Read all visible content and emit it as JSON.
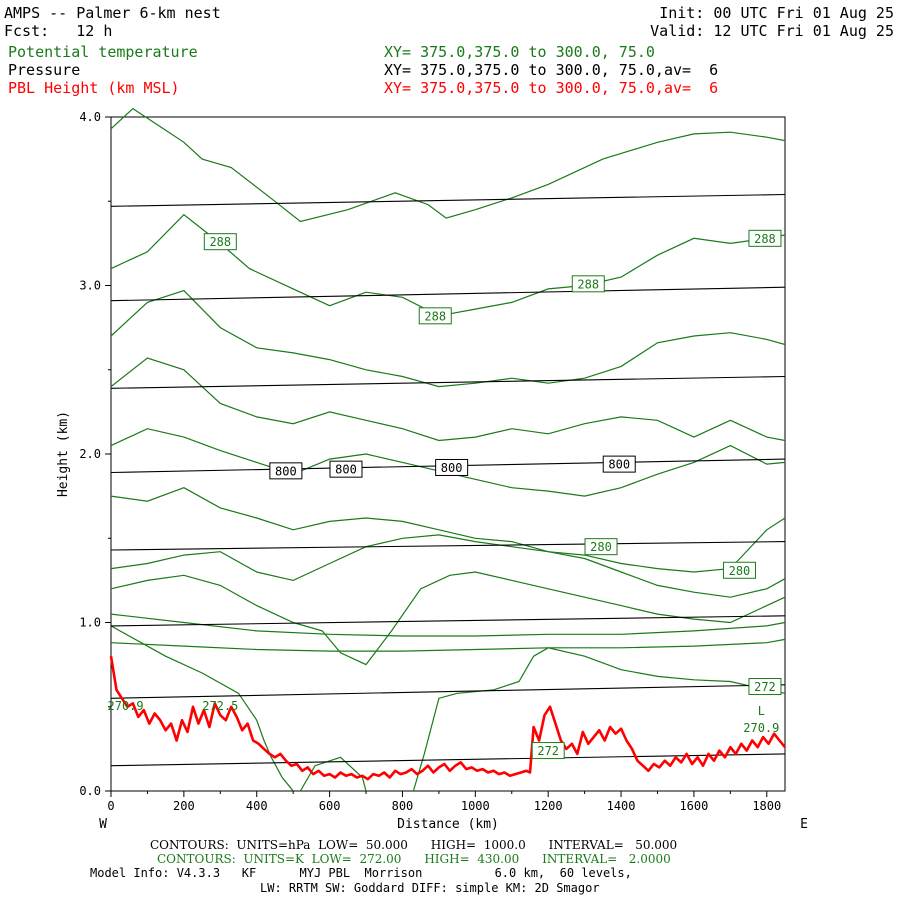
{
  "header": {
    "title": "AMPS -- Palmer 6-km nest",
    "init": "Init: 00 UTC Fri 01 Aug 25",
    "fcst": "Fcst:   12 h",
    "valid": "Valid: 12 UTC Fri 01 Aug 25",
    "field1": "Potential temperature",
    "field1_xy": "XY= 375.0,375.0 to 300.0, 75.0",
    "field2": "Pressure",
    "field2_xy": "XY= 375.0,375.0 to 300.0, 75.0,av=  6",
    "field3": "PBL Height (km MSL)",
    "field3_xy": "XY= 375.0,375.0 to 300.0, 75.0,av=  6"
  },
  "colors": {
    "theta": "#1a7a1a",
    "pressure": "#000000",
    "pbl": "#ff0000"
  },
  "footer": {
    "line1": "CONTOURS:  UNITS=hPa  LOW=  50.000      HIGH=  1000.0      INTERVAL=   50.000",
    "line2": "CONTOURS:  UNITS=K  LOW=  272.00      HIGH=  430.00      INTERVAL=   2.0000",
    "line3": "Model Info: V4.3.3   KF      MYJ PBL  Morrison          6.0 km,  60 levels,",
    "line4": "LW: RRTM SW: Goddard DIFF: simple KM: 2D Smagor"
  },
  "chart_data": {
    "type": "line",
    "xlabel": "Distance (km)",
    "ylabel": "Height (km)",
    "xlim": [
      0,
      1850
    ],
    "ylim": [
      0,
      4.0
    ],
    "x_ticks": [
      0,
      200,
      400,
      600,
      800,
      1000,
      1200,
      1400,
      1600,
      1800
    ],
    "y_ticks": [
      "0.0",
      "1.0",
      "2.0",
      "3.0",
      "4.0"
    ],
    "x_end_labels": {
      "left": "W",
      "right": "E"
    },
    "grid": false,
    "pressure_isobars": [
      {
        "name": "isobar",
        "x": [
          0,
          1850
        ],
        "y": [
          0.15,
          0.22
        ]
      },
      {
        "name": "isobar",
        "x": [
          0,
          1850
        ],
        "y": [
          0.55,
          0.63
        ]
      },
      {
        "name": "isobar",
        "x": [
          0,
          1850
        ],
        "y": [
          0.98,
          1.04
        ]
      },
      {
        "name": "isobar",
        "x": [
          0,
          1850
        ],
        "y": [
          1.43,
          1.48
        ]
      },
      {
        "name": "isobar",
        "x": [
          0,
          1850
        ],
        "y": [
          1.89,
          1.97
        ]
      },
      {
        "name": "isobar",
        "x": [
          0,
          1850
        ],
        "y": [
          2.39,
          2.46
        ]
      },
      {
        "name": "isobar",
        "x": [
          0,
          1850
        ],
        "y": [
          2.91,
          2.99
        ]
      },
      {
        "name": "isobar",
        "x": [
          0,
          1850
        ],
        "y": [
          3.47,
          3.54
        ]
      }
    ],
    "pressure_labels": [
      {
        "text": "800",
        "x": 480,
        "y": 1.9
      },
      {
        "text": "800",
        "x": 645,
        "y": 1.91
      },
      {
        "text": "800",
        "x": 935,
        "y": 1.92
      },
      {
        "text": "800",
        "x": 1395,
        "y": 1.94
      }
    ],
    "theta_contours": [
      {
        "x": [
          0,
          60,
          200,
          250,
          330,
          450,
          520,
          650,
          780,
          870,
          920,
          1000,
          1100,
          1200,
          1350,
          1500,
          1600,
          1700,
          1800,
          1850
        ],
        "y": [
          3.93,
          4.05,
          3.85,
          3.75,
          3.7,
          3.5,
          3.38,
          3.45,
          3.55,
          3.48,
          3.4,
          3.45,
          3.52,
          3.6,
          3.75,
          3.85,
          3.9,
          3.91,
          3.88,
          3.86
        ]
      },
      {
        "x": [
          0,
          100,
          200,
          300,
          380,
          500,
          600,
          700,
          800,
          900,
          1000,
          1100,
          1200,
          1300,
          1400,
          1500,
          1600,
          1700,
          1800,
          1850
        ],
        "y": [
          3.1,
          3.2,
          3.42,
          3.25,
          3.1,
          2.98,
          2.88,
          2.96,
          2.93,
          2.82,
          2.86,
          2.9,
          2.98,
          3.0,
          3.05,
          3.18,
          3.28,
          3.25,
          3.28,
          3.3
        ]
      },
      {
        "x": [
          0,
          100,
          200,
          300,
          400,
          500,
          600,
          700,
          800,
          900,
          1000,
          1100,
          1200,
          1300,
          1400,
          1500,
          1600,
          1700,
          1800,
          1850
        ],
        "y": [
          2.7,
          2.9,
          2.97,
          2.75,
          2.63,
          2.6,
          2.56,
          2.5,
          2.46,
          2.4,
          2.42,
          2.45,
          2.42,
          2.45,
          2.52,
          2.66,
          2.7,
          2.72,
          2.68,
          2.65
        ]
      },
      {
        "x": [
          0,
          100,
          200,
          300,
          400,
          500,
          600,
          700,
          800,
          900,
          1000,
          1100,
          1200,
          1300,
          1400,
          1500,
          1600,
          1700,
          1800,
          1850
        ],
        "y": [
          2.4,
          2.57,
          2.5,
          2.3,
          2.22,
          2.18,
          2.25,
          2.2,
          2.15,
          2.08,
          2.1,
          2.15,
          2.12,
          2.18,
          2.22,
          2.2,
          2.1,
          2.2,
          2.1,
          2.08
        ]
      },
      {
        "x": [
          0,
          100,
          200,
          300,
          400,
          500,
          600,
          700,
          800,
          900,
          1000,
          1100,
          1200,
          1300,
          1400,
          1500,
          1600,
          1700,
          1800,
          1850
        ],
        "y": [
          2.05,
          2.15,
          2.1,
          2.02,
          1.95,
          1.88,
          1.97,
          2.0,
          1.95,
          1.9,
          1.85,
          1.8,
          1.78,
          1.75,
          1.8,
          1.88,
          1.95,
          2.05,
          1.94,
          1.95
        ]
      },
      {
        "x": [
          0,
          100,
          200,
          300,
          400,
          500,
          600,
          700,
          800,
          900,
          1000,
          1100,
          1200,
          1300,
          1400,
          1500,
          1600,
          1700,
          1800,
          1850
        ],
        "y": [
          1.75,
          1.72,
          1.8,
          1.68,
          1.62,
          1.55,
          1.6,
          1.62,
          1.6,
          1.55,
          1.5,
          1.48,
          1.42,
          1.4,
          1.35,
          1.32,
          1.3,
          1.32,
          1.55,
          1.62
        ]
      },
      {
        "x": [
          0,
          100,
          200,
          300,
          400,
          500,
          600,
          700,
          800,
          900,
          1000,
          1100,
          1200,
          1300,
          1400,
          1500,
          1600,
          1700,
          1800,
          1850
        ],
        "y": [
          1.32,
          1.35,
          1.4,
          1.42,
          1.3,
          1.25,
          1.35,
          1.45,
          1.5,
          1.52,
          1.48,
          1.45,
          1.42,
          1.38,
          1.3,
          1.22,
          1.18,
          1.15,
          1.2,
          1.26
        ]
      },
      {
        "x": [
          0,
          100,
          200,
          300,
          400,
          500,
          580,
          630,
          700,
          770,
          850,
          930,
          1000,
          1100,
          1200,
          1300,
          1400,
          1500,
          1600,
          1700,
          1800,
          1850
        ],
        "y": [
          1.2,
          1.25,
          1.28,
          1.22,
          1.1,
          1.0,
          0.95,
          0.82,
          0.75,
          0.95,
          1.2,
          1.28,
          1.3,
          1.25,
          1.2,
          1.15,
          1.1,
          1.05,
          1.02,
          1.0,
          1.1,
          1.15
        ]
      },
      {
        "x": [
          0,
          200,
          400,
          600,
          800,
          1000,
          1200,
          1400,
          1600,
          1800,
          1850
        ],
        "y": [
          1.05,
          1.0,
          0.95,
          0.93,
          0.92,
          0.92,
          0.93,
          0.93,
          0.95,
          0.98,
          1.0
        ]
      },
      {
        "x": [
          0,
          200,
          400,
          600,
          800,
          1000,
          1200,
          1400,
          1600,
          1800,
          1850
        ],
        "y": [
          0.88,
          0.86,
          0.84,
          0.83,
          0.83,
          0.84,
          0.85,
          0.85,
          0.86,
          0.88,
          0.9
        ]
      },
      {
        "x": [
          0,
          150,
          250,
          350,
          400,
          420,
          440,
          470,
          500
        ],
        "y": [
          0.98,
          0.8,
          0.7,
          0.58,
          0.42,
          0.3,
          0.2,
          0.08,
          0.0
        ]
      },
      {
        "x": [
          830,
          860,
          900,
          950,
          1050,
          1120,
          1160,
          1200,
          1300,
          1400,
          1500,
          1600,
          1700,
          1800,
          1850
        ],
        "y": [
          0.0,
          0.22,
          0.55,
          0.58,
          0.6,
          0.65,
          0.8,
          0.85,
          0.8,
          0.72,
          0.68,
          0.66,
          0.65,
          0.6,
          0.58
        ]
      },
      {
        "x": [
          520,
          560,
          630,
          690,
          700
        ],
        "y": [
          0.0,
          0.15,
          0.2,
          0.08,
          0.0
        ]
      }
    ],
    "theta_labels": [
      {
        "text": "288",
        "x": 300,
        "y": 3.26
      },
      {
        "text": "288",
        "x": 1795,
        "y": 3.28
      },
      {
        "text": "288",
        "x": 1310,
        "y": 3.01
      },
      {
        "text": "288",
        "x": 890,
        "y": 2.82
      },
      {
        "text": "280",
        "x": 1345,
        "y": 1.45
      },
      {
        "text": "280",
        "x": 1725,
        "y": 1.31
      },
      {
        "text": "272",
        "x": 1795,
        "y": 0.62
      },
      {
        "text": "272",
        "x": 1200,
        "y": 0.24
      }
    ],
    "pbl_height": {
      "name": "PBL Height",
      "x": [
        0,
        15,
        30,
        45,
        60,
        75,
        90,
        105,
        120,
        135,
        150,
        165,
        180,
        195,
        210,
        225,
        240,
        255,
        270,
        285,
        300,
        315,
        330,
        345,
        360,
        375,
        390,
        405,
        420,
        435,
        450,
        465,
        480,
        495,
        510,
        525,
        540,
        555,
        570,
        585,
        600,
        615,
        630,
        645,
        660,
        675,
        690,
        705,
        720,
        735,
        750,
        765,
        780,
        795,
        810,
        825,
        840,
        855,
        870,
        885,
        900,
        915,
        930,
        945,
        960,
        975,
        990,
        1005,
        1020,
        1035,
        1050,
        1065,
        1080,
        1095,
        1110,
        1125,
        1140,
        1150,
        1160,
        1175,
        1190,
        1205,
        1220,
        1235,
        1250,
        1265,
        1280,
        1295,
        1310,
        1325,
        1340,
        1355,
        1370,
        1385,
        1400,
        1415,
        1430,
        1445,
        1460,
        1475,
        1490,
        1505,
        1520,
        1535,
        1550,
        1565,
        1580,
        1595,
        1610,
        1625,
        1640,
        1655,
        1670,
        1685,
        1700,
        1715,
        1730,
        1745,
        1760,
        1775,
        1790,
        1805,
        1820,
        1835,
        1850
      ],
      "y": [
        0.8,
        0.6,
        0.55,
        0.5,
        0.52,
        0.44,
        0.48,
        0.4,
        0.46,
        0.42,
        0.36,
        0.4,
        0.3,
        0.42,
        0.35,
        0.5,
        0.4,
        0.48,
        0.38,
        0.52,
        0.45,
        0.42,
        0.5,
        0.44,
        0.36,
        0.4,
        0.3,
        0.28,
        0.25,
        0.22,
        0.2,
        0.22,
        0.18,
        0.15,
        0.16,
        0.12,
        0.14,
        0.1,
        0.12,
        0.09,
        0.1,
        0.08,
        0.11,
        0.09,
        0.1,
        0.08,
        0.09,
        0.07,
        0.1,
        0.09,
        0.11,
        0.08,
        0.12,
        0.1,
        0.11,
        0.13,
        0.1,
        0.12,
        0.15,
        0.11,
        0.14,
        0.16,
        0.12,
        0.15,
        0.17,
        0.13,
        0.14,
        0.12,
        0.13,
        0.11,
        0.12,
        0.1,
        0.11,
        0.09,
        0.1,
        0.11,
        0.12,
        0.11,
        0.38,
        0.3,
        0.45,
        0.5,
        0.4,
        0.3,
        0.25,
        0.28,
        0.22,
        0.35,
        0.28,
        0.32,
        0.36,
        0.3,
        0.38,
        0.34,
        0.37,
        0.3,
        0.25,
        0.18,
        0.15,
        0.12,
        0.16,
        0.14,
        0.18,
        0.15,
        0.2,
        0.17,
        0.22,
        0.16,
        0.2,
        0.15,
        0.22,
        0.18,
        0.24,
        0.2,
        0.26,
        0.22,
        0.28,
        0.24,
        0.3,
        0.26,
        0.32,
        0.28,
        0.34,
        0.3,
        0.26
      ]
    },
    "pbl_labels": [
      {
        "text": "270.9",
        "x": 40,
        "y": 0.48
      },
      {
        "text": "272.5",
        "x": 300,
        "y": 0.48
      },
      {
        "text": "L",
        "x": 1785,
        "y": 0.45
      },
      {
        "text": "270.9",
        "x": 1785,
        "y": 0.35
      }
    ]
  }
}
